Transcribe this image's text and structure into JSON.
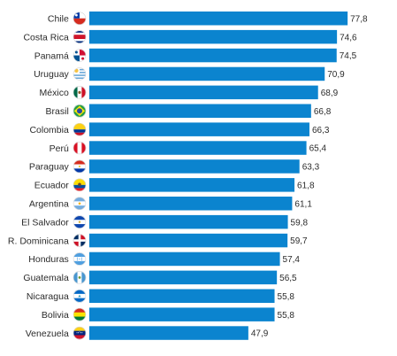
{
  "chart_data": {
    "type": "bar",
    "orientation": "horizontal",
    "categories": [
      "Chile",
      "Costa Rica",
      "Panamá",
      "Uruguay",
      "México",
      "Brasil",
      "Colombia",
      "Perú",
      "Paraguay",
      "Ecuador",
      "Argentina",
      "El Salvador",
      "R. Dominicana",
      "Honduras",
      "Guatemala",
      "Nicaragua",
      "Bolivia",
      "Venezuela"
    ],
    "values": [
      77.8,
      74.6,
      74.5,
      70.9,
      68.9,
      66.8,
      66.3,
      65.4,
      63.3,
      61.8,
      61.1,
      59.8,
      59.7,
      57.4,
      56.5,
      55.8,
      55.8,
      47.9
    ],
    "value_labels": [
      "77,8",
      "74,6",
      "74,5",
      "70,9",
      "68,9",
      "66,8",
      "66,3",
      "65,4",
      "63,3",
      "61,8",
      "61,1",
      "59,8",
      "59,7",
      "57,4",
      "56,5",
      "55,8",
      "55,8",
      "47,9"
    ],
    "flag_icons": [
      "chile-flag-icon",
      "costa-rica-flag-icon",
      "panama-flag-icon",
      "uruguay-flag-icon",
      "mexico-flag-icon",
      "brasil-flag-icon",
      "colombia-flag-icon",
      "peru-flag-icon",
      "paraguay-flag-icon",
      "ecuador-flag-icon",
      "argentina-flag-icon",
      "el-salvador-flag-icon",
      "r-dominicana-flag-icon",
      "honduras-flag-icon",
      "guatemala-flag-icon",
      "nicaragua-flag-icon",
      "bolivia-flag-icon",
      "venezuela-flag-icon"
    ],
    "title": "",
    "xlabel": "",
    "ylabel": "",
    "bar_color": "#0b84cf",
    "grid": false,
    "legend": "none"
  }
}
